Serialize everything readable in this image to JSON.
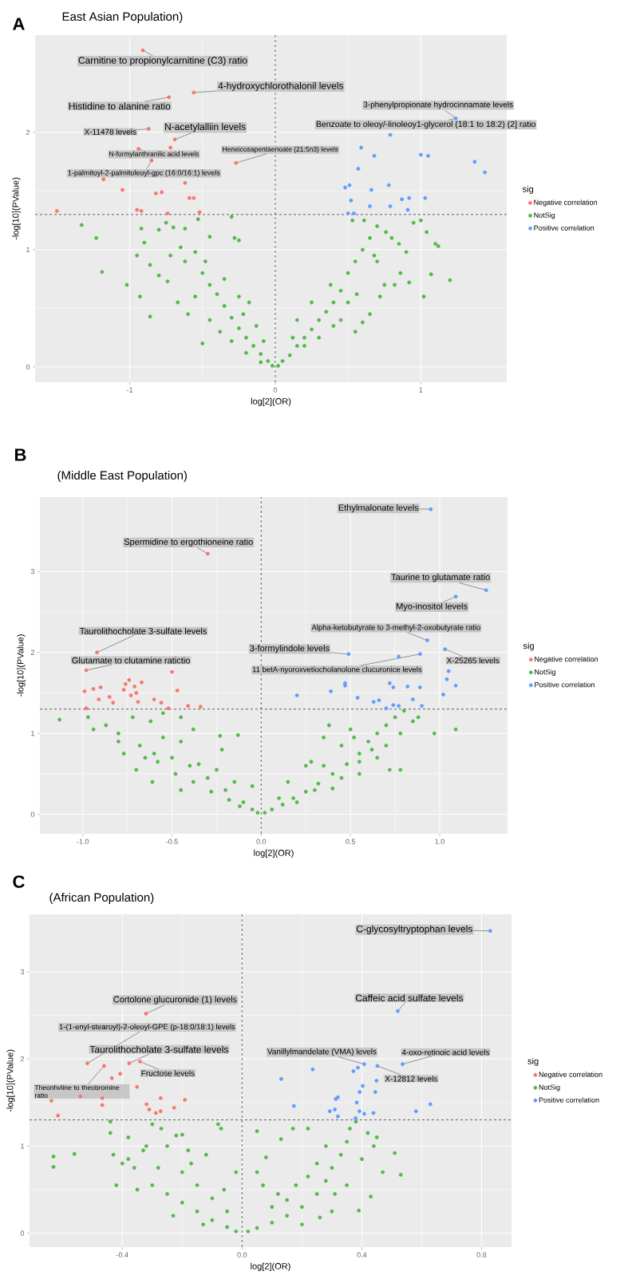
{
  "chart_data": [
    {
      "type": "scatter",
      "title": "East Asian Population)",
      "xlabel": "log[2](OR)",
      "ylabel": "-log[10](PValue)",
      "legend_title": "sig",
      "legend": "right",
      "grid": true,
      "marker": "circle",
      "xlim": [
        -1.65,
        1.59
      ],
      "ylim": [
        -0.13,
        2.83
      ],
      "xticks": [
        -1,
        0,
        1
      ],
      "yticks": [
        0,
        1,
        2
      ],
      "ref_lines": [
        {
          "axis": "x",
          "value": 0,
          "line_style": "dashed"
        },
        {
          "axis": "y",
          "value": 1.3,
          "line_style": "dashed"
        }
      ],
      "series": [
        {
          "name": "Negative correlation",
          "color": "#F8766D",
          "x": [
            -0.91,
            -0.56,
            -0.73,
            -0.87,
            -0.69,
            -0.72,
            -0.94,
            -0.85,
            -0.27,
            -1.18,
            -0.62,
            -1.05,
            -0.82,
            -0.78,
            -0.59,
            -0.56,
            -1.5,
            -0.95,
            -0.92,
            -0.74,
            -0.52
          ],
          "values": [
            2.7,
            2.34,
            2.3,
            2.03,
            1.94,
            1.87,
            1.86,
            1.76,
            1.74,
            1.6,
            1.57,
            1.51,
            1.48,
            1.49,
            1.44,
            1.44,
            1.33,
            1.34,
            1.33,
            1.31,
            1.32
          ]
        },
        {
          "name": "NotSig",
          "color": "#53B848",
          "x": [
            -1.33,
            -1.23,
            -1.19,
            -1.02,
            -0.95,
            -0.86,
            -0.9,
            -0.92,
            -0.8,
            -0.75,
            -0.7,
            -0.62,
            -0.53,
            -0.45,
            -0.3,
            -0.28,
            -0.25,
            -0.86,
            -0.8,
            -0.74,
            -0.67,
            -0.72,
            -0.62,
            -0.55,
            -0.5,
            -0.45,
            -0.4,
            -0.35,
            -0.3,
            -0.25,
            -0.2,
            -0.15,
            -0.1,
            -0.05,
            -0.02,
            -0.48,
            -0.35,
            -0.25,
            -0.22,
            -0.18,
            -0.55,
            -0.45,
            -0.38,
            -0.3,
            -0.2,
            -0.1,
            -0.5,
            -0.6,
            -0.13,
            -0.08,
            -0.93,
            -0.65,
            0.02,
            0.05,
            0.1,
            0.15,
            0.2,
            0.25,
            0.3,
            0.35,
            0.4,
            0.45,
            0.5,
            0.55,
            0.6,
            0.65,
            0.7,
            0.53,
            0.61,
            0.76,
            0.8,
            0.85,
            0.9,
            0.95,
            1.0,
            1.04,
            1.1,
            1.12,
            1.2,
            1.07,
            1.02,
            0.92,
            0.86,
            0.75,
            0.72,
            0.65,
            0.6,
            0.55,
            0.45,
            0.4,
            0.3,
            0.2,
            0.5,
            0.15,
            0.25,
            0.38,
            0.7,
            0.82,
            0.68,
            0.12,
            0.56
          ],
          "values": [
            1.21,
            1.1,
            0.81,
            0.7,
            0.95,
            0.43,
            1.06,
            1.18,
            1.17,
            1.23,
            1.19,
            1.18,
            1.26,
            1.11,
            1.28,
            1.1,
            1.08,
            0.87,
            0.78,
            0.73,
            0.55,
            0.95,
            0.9,
            0.98,
            0.8,
            0.7,
            0.62,
            0.52,
            0.42,
            0.33,
            0.25,
            0.18,
            0.11,
            0.05,
            0.01,
            0.9,
            0.75,
            0.6,
            0.45,
            0.55,
            0.6,
            0.4,
            0.3,
            0.22,
            0.12,
            0.04,
            0.2,
            0.45,
            0.35,
            0.22,
            0.6,
            1.02,
            0.01,
            0.05,
            0.1,
            0.18,
            0.25,
            0.32,
            0.4,
            0.47,
            0.55,
            0.65,
            0.8,
            0.9,
            1.0,
            1.1,
            1.2,
            1.25,
            1.25,
            1.15,
            1.1,
            1.05,
            0.98,
            1.23,
            1.25,
            1.15,
            1.05,
            1.03,
            0.74,
            0.79,
            0.6,
            0.72,
            0.8,
            0.7,
            0.6,
            0.45,
            0.38,
            0.3,
            0.4,
            0.35,
            0.25,
            0.18,
            0.55,
            0.4,
            0.55,
            0.7,
            0.9,
            0.7,
            0.95,
            0.25,
            0.62
          ]
        },
        {
          "name": "Positive correlation",
          "color": "#619CFF",
          "x": [
            1.24,
            0.79,
            0.59,
            1.0,
            1.05,
            0.68,
            1.37,
            1.44,
            0.57,
            0.48,
            0.51,
            0.78,
            0.66,
            0.52,
            0.87,
            0.92,
            1.03,
            0.65,
            0.79,
            0.5,
            0.54,
            0.91
          ],
          "values": [
            2.12,
            1.98,
            1.87,
            1.81,
            1.8,
            1.8,
            1.75,
            1.66,
            1.69,
            1.53,
            1.55,
            1.55,
            1.51,
            1.42,
            1.43,
            1.44,
            1.44,
            1.37,
            1.37,
            1.31,
            1.31,
            1.34
          ]
        }
      ],
      "annotations": [
        "A",
        {
          "text": "Carnitine to propionylcarnitine (C3) ratio",
          "x": -0.91,
          "y": 2.7
        },
        {
          "text": "4-hydroxychlorothalonil levels",
          "x": -0.56,
          "y": 2.34
        },
        {
          "text": "Histidine to alanine ratio",
          "x": -0.73,
          "y": 2.3
        },
        {
          "text": "X-11478 levels",
          "x": -0.87,
          "y": 2.03
        },
        {
          "text": "N-acetylalliin levels",
          "x": -0.69,
          "y": 1.94
        },
        {
          "text": "N-formylanthranilic acid levels",
          "x": -0.94,
          "y": 1.86
        },
        {
          "text": "Heneicosapentaenoate (21:5n3) levels",
          "x": -0.27,
          "y": 1.74
        },
        {
          "text": "1-palmitoyl-2-palmitoleoyl-gpc (16:0/16:1) levels",
          "x": -0.85,
          "y": 1.76
        },
        {
          "text": "3-phenylpropionate hydrocinnamate levels",
          "x": 1.24,
          "y": 2.12
        },
        {
          "text": "Benzoate to oleoy/-linoleoy1-glycerol (18:1 to 18:2) (2] ratio",
          "x": 1.24,
          "y": 2.12
        }
      ]
    },
    {
      "type": "scatter",
      "title": "(Middle East Population)",
      "xlabel": "log[2](OR)",
      "ylabel": "-log[10](PValue)",
      "legend_title": "sig",
      "legend": "right",
      "grid": true,
      "marker": "circle",
      "xlim": [
        -1.24,
        1.38
      ],
      "ylim": [
        -0.24,
        3.92
      ],
      "xticks": [
        {
          "value": -1,
          "label": "-1.0"
        },
        -0.5,
        {
          "value": 0,
          "label": "0.0"
        },
        0.5,
        {
          "value": 1,
          "label": "1.0"
        }
      ],
      "yticks": [
        0,
        1,
        2,
        3
      ],
      "ref_lines": [
        {
          "axis": "x",
          "value": 0,
          "line_style": "dashed"
        },
        {
          "axis": "y",
          "value": 1.3,
          "line_style": "dashed"
        }
      ],
      "series": [
        {
          "name": "Negative correlation",
          "color": "#F8766D",
          "x": [
            -0.3,
            -0.92,
            -0.98,
            -0.5,
            -0.47,
            -0.99,
            -0.94,
            -0.9,
            -0.85,
            -0.91,
            -0.83,
            -0.98,
            -0.77,
            -0.74,
            -0.76,
            -0.71,
            -0.67,
            -0.73,
            -0.7,
            -0.69,
            -0.6,
            -0.56,
            -0.52,
            -0.41,
            -0.34
          ],
          "values": [
            3.22,
            2.0,
            1.78,
            1.76,
            1.53,
            1.52,
            1.55,
            1.57,
            1.45,
            1.42,
            1.38,
            1.31,
            1.54,
            1.66,
            1.61,
            1.58,
            1.63,
            1.47,
            1.5,
            1.39,
            1.42,
            1.38,
            1.31,
            1.34,
            1.33
          ]
        },
        {
          "name": "NotSig",
          "color": "#53B848",
          "x": [
            -1.13,
            -0.97,
            -0.94,
            -0.87,
            -0.8,
            -0.77,
            -0.7,
            -0.61,
            -0.72,
            -0.62,
            -0.55,
            -0.45,
            -0.38,
            -0.23,
            -0.13,
            -0.55,
            -0.45,
            -0.68,
            -0.6,
            -0.5,
            -0.4,
            -0.3,
            -0.2,
            -0.1,
            -0.05,
            -0.02,
            -0.48,
            -0.38,
            -0.28,
            -0.18,
            -0.12,
            -0.58,
            -0.35,
            -0.25,
            -0.15,
            -0.05,
            -0.22,
            -0.45,
            -0.65,
            -0.8,
            0.02,
            0.06,
            0.12,
            0.18,
            0.25,
            0.32,
            0.4,
            0.48,
            0.55,
            0.6,
            0.65,
            0.7,
            0.75,
            0.8,
            0.85,
            0.88,
            0.97,
            1.09,
            0.78,
            0.72,
            0.78,
            0.5,
            0.38,
            0.35,
            0.45,
            0.55,
            0.62,
            0.25,
            0.15,
            0.3,
            0.45,
            0.2,
            0.1,
            0.35,
            0.65,
            0.55,
            0.4,
            0.28,
            0.7,
            0.52
          ],
          "values": [
            1.17,
            1.2,
            1.05,
            1.1,
            1.0,
            0.75,
            0.55,
            0.4,
            1.2,
            1.15,
            1.25,
            1.2,
            1.05,
            0.97,
            0.98,
            0.95,
            0.9,
            0.85,
            0.75,
            0.7,
            0.6,
            0.45,
            0.3,
            0.15,
            0.06,
            0.02,
            0.5,
            0.4,
            0.28,
            0.18,
            0.1,
            0.65,
            0.62,
            0.55,
            0.4,
            0.35,
            0.8,
            0.3,
            0.7,
            0.9,
            0.02,
            0.06,
            0.12,
            0.2,
            0.28,
            0.38,
            0.5,
            0.62,
            0.75,
            0.9,
            1.0,
            1.1,
            1.2,
            1.28,
            1.15,
            1.2,
            1.0,
            1.05,
            1.0,
            0.55,
            0.55,
            1.05,
            1.1,
            0.95,
            0.85,
            0.65,
            0.8,
            0.6,
            0.4,
            0.3,
            0.45,
            0.15,
            0.2,
            0.6,
            0.7,
            0.5,
            0.32,
            0.65,
            0.85,
            0.95
          ]
        },
        {
          "name": "Positive correlation",
          "color": "#619CFF",
          "x": [
            0.95,
            1.26,
            1.09,
            0.93,
            0.89,
            1.03,
            0.49,
            0.77,
            1.05,
            1.04,
            1.09,
            1.02,
            0.47,
            0.47,
            0.39,
            0.2,
            0.54,
            0.72,
            0.74,
            0.82,
            0.89,
            0.63,
            0.66,
            0.7,
            0.74,
            0.77,
            0.85,
            0.9
          ],
          "values": [
            3.77,
            2.77,
            2.69,
            2.15,
            1.98,
            2.04,
            1.98,
            1.95,
            1.77,
            1.67,
            1.59,
            1.48,
            1.62,
            1.59,
            1.52,
            1.47,
            1.44,
            1.62,
            1.57,
            1.58,
            1.57,
            1.39,
            1.41,
            1.31,
            1.35,
            1.34,
            1.42,
            1.34
          ]
        }
      ],
      "annotations": [
        "B",
        {
          "text": "Ethylmalonate levels",
          "x": 0.95,
          "y": 3.77
        },
        {
          "text": "Spermidine to ergothioneine ratio",
          "x": -0.3,
          "y": 3.22
        },
        {
          "text": "Taurine to glutamate ratio",
          "x": 1.26,
          "y": 2.77
        },
        {
          "text": "Myo-inositol levels",
          "x": 1.09,
          "y": 2.69
        },
        {
          "text": "Alpha-ketobutyrate to 3-methyl-2-oxobutyrate ratio",
          "x": 0.93,
          "y": 2.15
        },
        {
          "text": "Taurolithocholate 3-sulfate levels",
          "x": -0.92,
          "y": 2.0
        },
        {
          "text": "Glutamate to clutamine ratictio",
          "x": -0.98,
          "y": 1.78
        },
        {
          "text": "3-formylindole levels",
          "x": 0.49,
          "y": 1.98
        },
        {
          "text": "11 betA-nyoroxvetiocholanolone clucuronice levels",
          "x": 0.89,
          "y": 1.98
        },
        {
          "text": "X-25265 levels",
          "x": 1.03,
          "y": 2.04
        }
      ]
    },
    {
      "type": "scatter",
      "title": "(African Population)",
      "xlabel": "log[2](OR)",
      "ylabel": "-log[10](PValue)",
      "legend_title": "sig",
      "legend": "right",
      "grid": true,
      "marker": "circle",
      "xlim": [
        -0.71,
        0.9
      ],
      "ylim": [
        -0.16,
        3.66
      ],
      "xticks": [
        -0.4,
        {
          "value": 0,
          "label": "0.0"
        },
        0.4,
        0.8
      ],
      "yticks": [
        0,
        1,
        2,
        3
      ],
      "ref_lines": [
        {
          "axis": "x",
          "value": 0,
          "line_style": "dashed"
        },
        {
          "axis": "y",
          "value": 1.3,
          "line_style": "dashed"
        }
      ],
      "series": [
        {
          "name": "Negative correlation",
          "color": "#F8766D",
          "x": [
            -0.321,
            -0.517,
            -0.341,
            -0.377,
            -0.461,
            -0.435,
            -0.407,
            -0.351,
            -0.637,
            -0.615,
            -0.54,
            -0.467,
            -0.467,
            -0.319,
            -0.31,
            -0.288,
            -0.272,
            -0.272,
            -0.227,
            -0.191
          ],
          "values": [
            2.52,
            1.95,
            1.97,
            1.95,
            1.92,
            1.78,
            1.83,
            1.68,
            1.52,
            1.35,
            1.57,
            1.55,
            1.47,
            1.48,
            1.42,
            1.38,
            1.4,
            1.55,
            1.44,
            1.53
          ]
        },
        {
          "name": "NotSig",
          "color": "#53B848",
          "x": [
            -0.63,
            -0.63,
            -0.56,
            -0.42,
            -0.43,
            -0.44,
            -0.44,
            -0.38,
            -0.36,
            -0.38,
            -0.3,
            -0.27,
            -0.22,
            -0.2,
            -0.08,
            -0.07,
            -0.32,
            -0.25,
            -0.18,
            -0.12,
            -0.3,
            -0.25,
            -0.2,
            -0.15,
            -0.1,
            -0.05,
            -0.02,
            -0.28,
            -0.2,
            -0.15,
            -0.1,
            -0.05,
            -0.35,
            -0.23,
            -0.13,
            -0.02,
            -0.06,
            -0.33,
            -0.4,
            -0.17,
            0.02,
            0.05,
            0.1,
            0.15,
            0.2,
            0.25,
            0.28,
            0.3,
            0.33,
            0.35,
            0.36,
            0.38,
            0.42,
            0.44,
            0.47,
            0.43,
            0.39,
            0.51,
            0.53,
            0.22,
            0.17,
            0.13,
            0.08,
            0.05,
            0.07,
            0.12,
            0.18,
            0.25,
            0.28,
            0.31,
            0.35,
            0.2,
            0.3,
            0.15,
            0.1,
            0.4,
            0.45,
            0.26,
            0.05,
            0.22
          ],
          "values": [
            0.88,
            0.76,
            0.91,
            0.55,
            0.9,
            1.15,
            1.28,
            1.1,
            0.75,
            0.85,
            1.25,
            1.2,
            1.12,
            1.13,
            1.25,
            1.2,
            1.0,
            1.0,
            0.95,
            0.9,
            0.55,
            0.45,
            0.35,
            0.25,
            0.15,
            0.07,
            0.02,
            0.75,
            0.7,
            0.55,
            0.4,
            0.25,
            0.5,
            0.2,
            0.1,
            0.7,
            0.5,
            0.95,
            0.8,
            0.8,
            0.02,
            0.06,
            0.12,
            0.2,
            0.3,
            0.45,
            0.6,
            0.75,
            0.9,
            1.05,
            1.2,
            1.28,
            1.15,
            1.0,
            0.7,
            0.42,
            0.26,
            0.92,
            0.67,
            1.2,
            1.2,
            1.08,
            0.87,
            0.7,
            0.55,
            0.45,
            0.55,
            0.8,
            1.0,
            0.45,
            0.55,
            0.1,
            0.25,
            0.38,
            0.3,
            0.85,
            1.1,
            0.18,
            1.17,
            0.65
          ]
        },
        {
          "name": "Positive correlation",
          "color": "#619CFF",
          "x": [
            0.829,
            0.52,
            0.408,
            0.536,
            0.452,
            0.236,
            0.372,
            0.387,
            0.131,
            0.403,
            0.393,
            0.449,
            0.445,
            0.173,
            0.313,
            0.32,
            0.383,
            0.629,
            0.581,
            0.293,
            0.31,
            0.32,
            0.379,
            0.392,
            0.408,
            0.439
          ],
          "values": [
            3.47,
            2.55,
            1.94,
            1.94,
            1.92,
            1.88,
            1.86,
            1.9,
            1.77,
            1.69,
            1.62,
            1.75,
            1.62,
            1.46,
            1.54,
            1.56,
            1.5,
            1.48,
            1.4,
            1.4,
            1.42,
            1.34,
            1.32,
            1.4,
            1.37,
            1.38
          ]
        }
      ],
      "annotations": [
        "C",
        {
          "text": "C-glycosyltryptophan levels",
          "x": 0.829,
          "y": 3.47
        },
        {
          "text": "Cortolone glucuronide (1) levels",
          "x": -0.321,
          "y": 2.52
        },
        {
          "text": "Caffeic acid sulfate levels",
          "x": 0.52,
          "y": 2.55
        },
        {
          "text": "1-(1-enyl-stearoyl)-2-oleoyl-GPE (p-18:0/18:1) levels",
          "x": -0.517,
          "y": 1.95
        },
        {
          "text": "Taurolithocholate 3-sulfate levels",
          "x": -0.377,
          "y": 1.95
        },
        {
          "text": "Vanillylmandelate (VMA) levels",
          "x": 0.408,
          "y": 1.94
        },
        {
          "text": "4-oxo-retinoic acid levels",
          "x": 0.536,
          "y": 1.94
        },
        {
          "text": "Fructose levels",
          "x": -0.341,
          "y": 1.97
        },
        {
          "text": "X-12812 levels",
          "x": 0.452,
          "y": 1.92
        },
        {
          "text": "Theonhvline to theobromine ratio",
          "x": -0.461,
          "y": 1.92
        }
      ]
    }
  ]
}
